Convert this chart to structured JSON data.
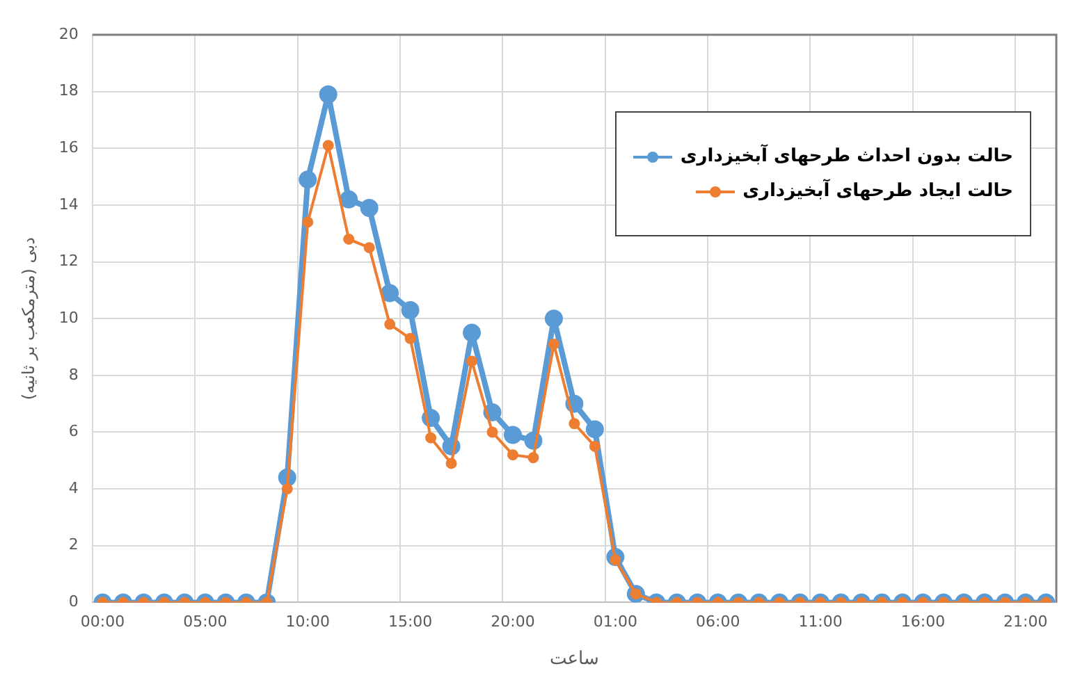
{
  "chart_data": {
    "type": "line",
    "xlabel": "ساعت",
    "ylabel": "دبی (مترمکعب بر ثانیه)",
    "categories": [
      "00:00",
      null,
      null,
      null,
      null,
      "05:00",
      null,
      null,
      null,
      null,
      "10:00",
      null,
      null,
      null,
      null,
      "15:00",
      null,
      null,
      null,
      null,
      "20:00",
      null,
      null,
      null,
      null,
      "01:00",
      null,
      null,
      null,
      null,
      "06:00",
      null,
      null,
      null,
      null,
      "11:00",
      null,
      null,
      null,
      null,
      "16:00",
      null,
      null,
      null,
      null,
      "21:00",
      null
    ],
    "series": [
      {
        "name": "حالت بدون احداث طرحهای آبخیزداری",
        "color": "#5b9bd5",
        "values": [
          0,
          0,
          0,
          0,
          0,
          0,
          0,
          0,
          0,
          4.4,
          14.9,
          17.9,
          14.2,
          13.9,
          10.9,
          10.3,
          6.5,
          5.5,
          9.5,
          6.7,
          5.9,
          5.7,
          10.0,
          7.0,
          6.1,
          1.6,
          0.3,
          0,
          0,
          0,
          0,
          0,
          0,
          0,
          0,
          0,
          0,
          0,
          0,
          0,
          0,
          0,
          0,
          0,
          0,
          0,
          0
        ]
      },
      {
        "name": "حالت ایجاد طرحهای آبخیزداری",
        "color": "#ed7d31",
        "values": [
          0,
          0,
          0,
          0,
          0,
          0,
          0,
          0,
          0,
          4.0,
          13.4,
          16.1,
          12.8,
          12.5,
          9.8,
          9.3,
          5.8,
          4.9,
          8.5,
          6.0,
          5.2,
          5.1,
          9.1,
          6.3,
          5.5,
          1.5,
          0.3,
          0,
          0,
          0,
          0,
          0,
          0,
          0,
          0,
          0,
          0,
          0,
          0,
          0,
          0,
          0,
          0,
          0,
          0,
          0,
          0
        ]
      }
    ],
    "ylim": [
      0,
      20
    ],
    "yticks": [
      0,
      2,
      4,
      6,
      8,
      10,
      12,
      14,
      16,
      18,
      20
    ],
    "grid": true,
    "legend": "top right",
    "marker": "circle",
    "line_style": "solid"
  }
}
